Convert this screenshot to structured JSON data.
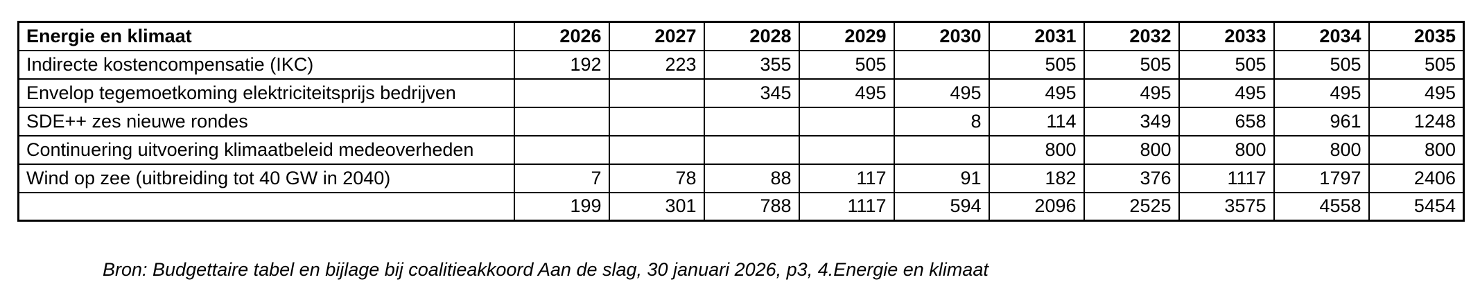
{
  "table": {
    "title": "Energie en klimaat",
    "years": [
      "2026",
      "2027",
      "2028",
      "2029",
      "2030",
      "2031",
      "2032",
      "2033",
      "2034",
      "2035"
    ],
    "rows": [
      {
        "label": "Indirecte kostencompensatie (IKC)",
        "values": [
          "192",
          "223",
          "355",
          "505",
          "",
          "505",
          "505",
          "505",
          "505",
          "505"
        ]
      },
      {
        "label": "Envelop tegemoetkoming elektriciteitsprijs bedrijven",
        "values": [
          "",
          "",
          "345",
          "495",
          "495",
          "495",
          "495",
          "495",
          "495",
          "495"
        ]
      },
      {
        "label": "SDE++ zes nieuwe rondes",
        "values": [
          "",
          "",
          "",
          "",
          "8",
          "114",
          "349",
          "658",
          "961",
          "1248"
        ]
      },
      {
        "label": "Continuering uitvoering klimaatbeleid medeoverheden",
        "values": [
          "",
          "",
          "",
          "",
          "",
          "800",
          "800",
          "800",
          "800",
          "800"
        ]
      },
      {
        "label": "Wind op zee (uitbreiding tot 40 GW in 2040)",
        "values": [
          "7",
          "78",
          "88",
          "117",
          "91",
          "182",
          "376",
          "1117",
          "1797",
          "2406"
        ]
      },
      {
        "label": "",
        "values": [
          "199",
          "301",
          "788",
          "1117",
          "594",
          "2096",
          "2525",
          "3575",
          "4558",
          "5454"
        ]
      }
    ]
  },
  "source": "Bron: Budgettaire tabel en bijlage bij coalitieakkoord Aan de slag, 30 januari 2026,  p3, 4.Energie en klimaat",
  "colors": {
    "border": "#000000",
    "text": "#000000",
    "background": "#ffffff"
  }
}
